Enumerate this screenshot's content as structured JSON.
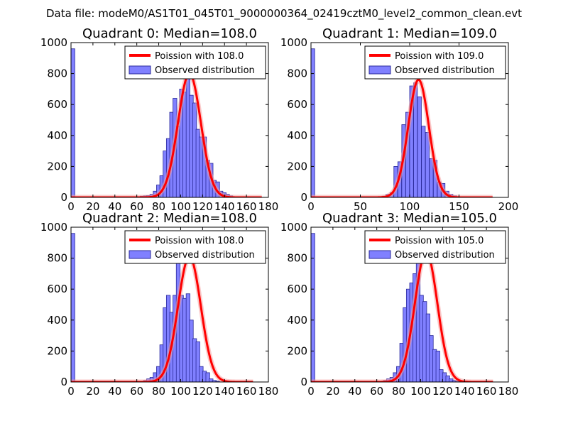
{
  "figure": {
    "suptitle": "Data file: modeM0/AS1T01_045T01_9000000364_02419cztM0_level2_common_clean.evt"
  },
  "colors": {
    "bar_fill": "#8080ff",
    "bar_edge": "#2a2a9a",
    "curve": "#ff0000",
    "curve_glow": "#f6a0a0",
    "axis": "#000000"
  },
  "chart_data": [
    {
      "type": "bar",
      "title": "Quadrant 0: Median=108.0",
      "xlim": [
        0,
        180
      ],
      "ylim": [
        0,
        1000
      ],
      "xticks": [
        "0",
        "20",
        "40",
        "60",
        "80",
        "100",
        "120",
        "140",
        "160",
        "180"
      ],
      "yticks": [
        "0",
        "200",
        "400",
        "600",
        "800",
        "1000"
      ],
      "bin_width": 3.5,
      "histogram": {
        "name": "Observed distribution",
        "bins": [
          [
            0,
            960
          ],
          [
            63,
            8
          ],
          [
            66,
            10
          ],
          [
            69,
            12
          ],
          [
            72,
            20
          ],
          [
            75,
            40
          ],
          [
            78,
            80
          ],
          [
            81,
            140
          ],
          [
            84,
            300
          ],
          [
            87,
            380
          ],
          [
            90,
            550
          ],
          [
            93,
            640
          ],
          [
            96,
            460
          ],
          [
            99,
            700
          ],
          [
            102,
            680
          ],
          [
            105,
            780
          ],
          [
            108,
            660
          ],
          [
            111,
            610
          ],
          [
            114,
            440
          ],
          [
            117,
            390
          ],
          [
            120,
            390
          ],
          [
            123,
            240
          ],
          [
            126,
            220
          ],
          [
            129,
            110
          ],
          [
            132,
            100
          ],
          [
            135,
            40
          ],
          [
            138,
            30
          ],
          [
            141,
            20
          ],
          [
            144,
            10
          ]
        ]
      },
      "curve": {
        "name": "Poission with 108.0",
        "mu": 108,
        "amp": 800,
        "sigma": 10.39,
        "x_end": 174
      }
    },
    {
      "type": "bar",
      "title": "Quadrant 1: Median=109.0",
      "xlim": [
        0,
        200
      ],
      "ylim": [
        0,
        1000
      ],
      "xticks": [
        "0",
        "50",
        "100",
        "150",
        "200"
      ],
      "yticks": [
        "0",
        "200",
        "400",
        "600",
        "800",
        "1000"
      ],
      "bin_width": 3.8,
      "histogram": {
        "name": "Observed distribution",
        "bins": [
          [
            0,
            960
          ],
          [
            72,
            8
          ],
          [
            76,
            20
          ],
          [
            80,
            30
          ],
          [
            84,
            200
          ],
          [
            88,
            230
          ],
          [
            92,
            470
          ],
          [
            96,
            550
          ],
          [
            100,
            720
          ],
          [
            104,
            740
          ],
          [
            108,
            650
          ],
          [
            112,
            460
          ],
          [
            116,
            420
          ],
          [
            120,
            250
          ],
          [
            124,
            240
          ],
          [
            128,
            100
          ],
          [
            132,
            90
          ],
          [
            136,
            40
          ],
          [
            140,
            20
          ],
          [
            144,
            10
          ],
          [
            148,
            5
          ]
        ]
      },
      "curve": {
        "name": "Poission with 109.0",
        "mu": 109,
        "amp": 760,
        "sigma": 10.44,
        "x_end": 184
      }
    },
    {
      "type": "bar",
      "title": "Quadrant 2: Median=108.0",
      "xlim": [
        0,
        180
      ],
      "ylim": [
        0,
        1000
      ],
      "xticks": [
        "0",
        "20",
        "40",
        "60",
        "80",
        "100",
        "120",
        "140",
        "160",
        "180"
      ],
      "yticks": [
        "0",
        "200",
        "400",
        "600",
        "800",
        "1000"
      ],
      "bin_width": 3.5,
      "histogram": {
        "name": "Observed distribution",
        "bins": [
          [
            0,
            960
          ],
          [
            66,
            10
          ],
          [
            69,
            20
          ],
          [
            72,
            30
          ],
          [
            75,
            60
          ],
          [
            78,
            100
          ],
          [
            81,
            240
          ],
          [
            84,
            480
          ],
          [
            87,
            560
          ],
          [
            90,
            450
          ],
          [
            93,
            560
          ],
          [
            96,
            780
          ],
          [
            99,
            560
          ],
          [
            102,
            540
          ],
          [
            105,
            570
          ],
          [
            108,
            400
          ],
          [
            111,
            280
          ],
          [
            114,
            260
          ],
          [
            117,
            100
          ],
          [
            120,
            70
          ],
          [
            123,
            60
          ],
          [
            126,
            20
          ],
          [
            129,
            10
          ],
          [
            132,
            5
          ]
        ]
      },
      "curve": {
        "name": "Poission with 108.0",
        "mu": 108,
        "amp": 810,
        "sigma": 10.39,
        "x_end": 166
      }
    },
    {
      "type": "bar",
      "title": "Quadrant 3: Median=105.0",
      "xlim": [
        0,
        180
      ],
      "ylim": [
        0,
        1000
      ],
      "xticks": [
        "0",
        "20",
        "40",
        "60",
        "80",
        "100",
        "120",
        "140",
        "160",
        "180"
      ],
      "yticks": [
        "0",
        "200",
        "400",
        "600",
        "800",
        "1000"
      ],
      "bin_width": 3.5,
      "histogram": {
        "name": "Observed distribution",
        "bins": [
          [
            0,
            960
          ],
          [
            66,
            10
          ],
          [
            69,
            20
          ],
          [
            72,
            30
          ],
          [
            75,
            60
          ],
          [
            78,
            100
          ],
          [
            81,
            250
          ],
          [
            84,
            480
          ],
          [
            87,
            600
          ],
          [
            90,
            640
          ],
          [
            93,
            700
          ],
          [
            96,
            840
          ],
          [
            99,
            560
          ],
          [
            102,
            520
          ],
          [
            105,
            440
          ],
          [
            108,
            300
          ],
          [
            111,
            210
          ],
          [
            114,
            200
          ],
          [
            117,
            80
          ],
          [
            120,
            60
          ],
          [
            123,
            40
          ],
          [
            126,
            20
          ],
          [
            129,
            10
          ],
          [
            132,
            5
          ],
          [
            135,
            2
          ]
        ]
      },
      "curve": {
        "name": "Poission with 105.0",
        "mu": 105,
        "amp": 840,
        "sigma": 10.25,
        "x_end": 166
      }
    }
  ]
}
